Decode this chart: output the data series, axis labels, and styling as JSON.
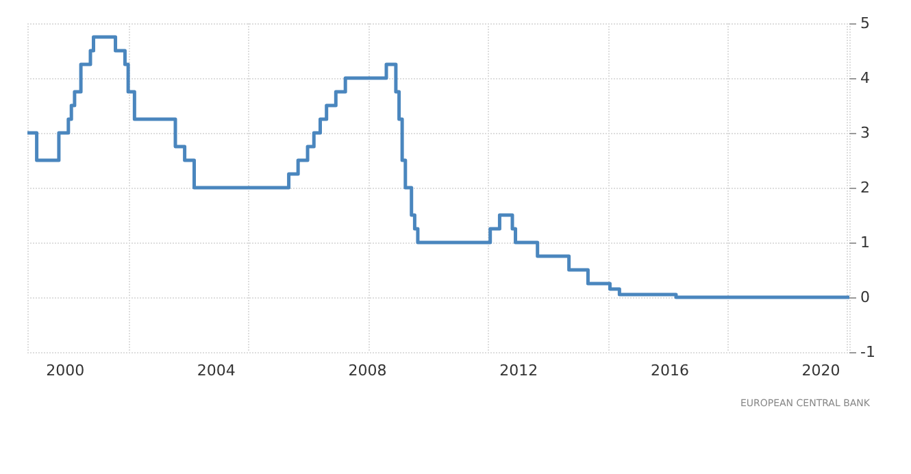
{
  "chart_data": {
    "type": "step",
    "color": "#4a86be",
    "line_style": "solid",
    "marker": "none",
    "grid": true,
    "x": [
      "1999-01",
      "1999-04",
      "1999-11",
      "2000-02",
      "2000-03",
      "2000-04",
      "2000-06",
      "2000-09",
      "2000-10",
      "2001-05",
      "2001-08",
      "2001-09",
      "2001-11",
      "2002-12",
      "2003-03",
      "2003-06",
      "2005-12",
      "2006-03",
      "2006-06",
      "2006-08",
      "2006-10",
      "2006-12",
      "2007-03",
      "2007-06",
      "2008-07",
      "2008-10",
      "2008-11",
      "2008-12",
      "2009-01",
      "2009-03",
      "2009-04",
      "2009-05",
      "2011-04",
      "2011-07",
      "2011-11",
      "2011-12",
      "2012-07",
      "2013-05",
      "2013-11",
      "2014-06",
      "2014-09",
      "2016-03",
      "2020-10"
    ],
    "values": [
      3.0,
      2.5,
      3.0,
      3.25,
      3.5,
      3.75,
      4.25,
      4.5,
      4.75,
      4.5,
      4.25,
      3.75,
      3.25,
      2.75,
      2.5,
      2.0,
      2.25,
      2.5,
      2.75,
      3.0,
      3.25,
      3.5,
      3.75,
      4.0,
      4.25,
      3.75,
      3.25,
      2.5,
      2.0,
      1.5,
      1.25,
      1.0,
      1.25,
      1.5,
      1.25,
      1.0,
      0.75,
      0.5,
      0.25,
      0.15,
      0.05,
      0.0,
      0.0
    ],
    "xlim": [
      "1999-01",
      "2020-10"
    ],
    "xticks": [
      "2000",
      "2004",
      "2008",
      "2012",
      "2016",
      "2020"
    ],
    "ylim": [
      -1,
      5
    ],
    "yticks": [
      -1,
      0,
      1,
      2,
      3,
      4,
      5
    ],
    "annotations": [
      "EUROPEAN CENTRAL BANK"
    ]
  }
}
